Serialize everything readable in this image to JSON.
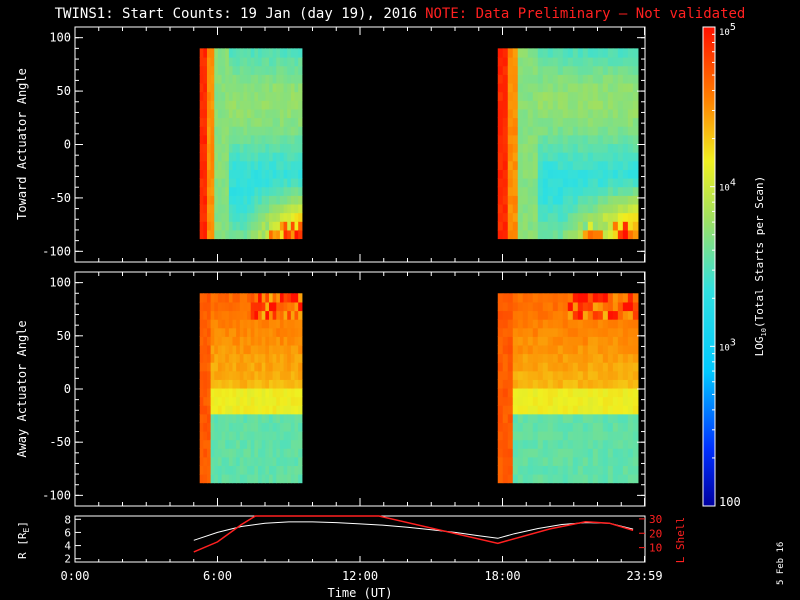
{
  "title": "TWINS1: Start Counts: 19 Jan (day  19), 2016",
  "note": "NOTE: Data Preliminary – Not validated",
  "date_stamp": "5 Feb 16",
  "colors": {
    "background": "#000000",
    "axis": "#ffffff",
    "note": "#ff2020",
    "ephemeris_r": "#ffffff",
    "ephemeris_lshell": "#ff2020"
  },
  "colorbar": {
    "label": "LOG10(Total Starts per Scan)",
    "label_main": "LOG",
    "label_sub": "10",
    "label_rest": "(Total Starts per Scan)",
    "range": [
      100,
      100000
    ],
    "ticks": [
      "100",
      "10^3",
      "10^4",
      "10^5"
    ],
    "tick_values": [
      100,
      1000,
      10000,
      100000
    ]
  },
  "chart_data": [
    {
      "type": "heatmap",
      "ylabel": "Toward Actuator Angle",
      "ylim": [
        -110,
        110
      ],
      "yticks": [
        100,
        50,
        0,
        -50,
        -100
      ],
      "angle_range": [
        -88,
        90
      ],
      "xlim": [
        0,
        24
      ],
      "data_intervals": [
        [
          5.25,
          9.55
        ],
        [
          17.8,
          23.7
        ]
      ],
      "description_of_levels": "high (~1e5) at start of each pass, ~1e3-1e4 mid-pass, rising near -90 deg late in pass"
    },
    {
      "type": "heatmap",
      "ylabel": "Away Actuator Angle",
      "ylim": [
        -110,
        110
      ],
      "yticks": [
        100,
        50,
        0,
        -50,
        -100
      ],
      "angle_range": [
        -88,
        90
      ],
      "xlim": [
        0,
        24
      ],
      "data_intervals": [
        [
          5.25,
          9.55
        ],
        [
          17.8,
          23.7
        ]
      ],
      "description_of_levels": "high (~1e4-1e5) above 0 deg, ~1e3 below -20 deg"
    },
    {
      "type": "line",
      "xlabel": "Time (UT)",
      "xticks": [
        "0:00",
        "6:00",
        "12:00",
        "18:00",
        "23:59"
      ],
      "xtick_values": [
        0,
        6,
        12,
        18,
        23.98
      ],
      "ylabel_left": "R [RE]",
      "ylabel_left_main": "R [R",
      "ylabel_left_sub": "E",
      "ylabel_left_end": "]",
      "ylabel_right": "L Shell",
      "left_yticks": [
        2,
        4,
        6,
        8
      ],
      "left_ylim": [
        1.5,
        8.5
      ],
      "right_yticks": [
        10,
        20,
        30
      ],
      "right_ylim": [
        0,
        32
      ],
      "series": [
        {
          "name": "R [RE]",
          "color": "#ffffff",
          "x": [
            5.0,
            6.0,
            7.0,
            8.0,
            9.0,
            10.0,
            11.0,
            12.0,
            13.0,
            14.0,
            15.0,
            16.0,
            17.0,
            17.8,
            18.5,
            19.5,
            20.5,
            21.5,
            22.5,
            23.5
          ],
          "y": [
            4.8,
            6.0,
            6.9,
            7.4,
            7.6,
            7.6,
            7.5,
            7.3,
            7.1,
            6.8,
            6.4,
            6.0,
            5.5,
            5.1,
            5.8,
            6.6,
            7.2,
            7.5,
            7.4,
            6.5
          ]
        },
        {
          "name": "L Shell",
          "color": "#ff2020",
          "x": [
            5.0,
            6.0,
            7.0,
            7.6,
            12.8,
            17.8,
            20.0,
            21.5,
            22.5,
            23.5
          ],
          "y": [
            7,
            14,
            26,
            32,
            32,
            13,
            23,
            28,
            27,
            22
          ]
        }
      ]
    }
  ]
}
